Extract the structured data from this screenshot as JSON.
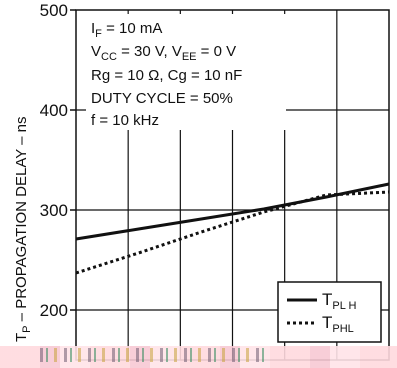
{
  "chart_data": {
    "type": "line",
    "ylabel_main": "T",
    "ylabel_sub": "P",
    "ylabel_rest": " – PROPAGATION DELAY – ns",
    "ylim": [
      150,
      500
    ],
    "yticks": [
      200,
      300,
      400,
      500
    ],
    "grid": true,
    "conditions": [
      {
        "main": "I",
        "sub": "F",
        "rest": " = 10 mA"
      },
      {
        "main": "V",
        "sub": "CC",
        "rest": " = 30 V,  V",
        "sub2": "EE",
        "rest2": " = 0  V"
      },
      {
        "main": "Rg = 10   Ω, Cg = 10 nF"
      },
      {
        "main": "DUTY CYCLE = 50%"
      },
      {
        "main": "f = 10 kHz"
      }
    ],
    "legend_position": "bottom-right",
    "series": [
      {
        "name_main": "T",
        "name_sub": "PL H",
        "style": "solid",
        "values": [
          271,
          281,
          291,
          301,
          313,
          326
        ]
      },
      {
        "name_main": "T",
        "name_sub": "PHL",
        "style": "dotted",
        "values": [
          237,
          257,
          278,
          298,
          315,
          318
        ]
      }
    ]
  }
}
